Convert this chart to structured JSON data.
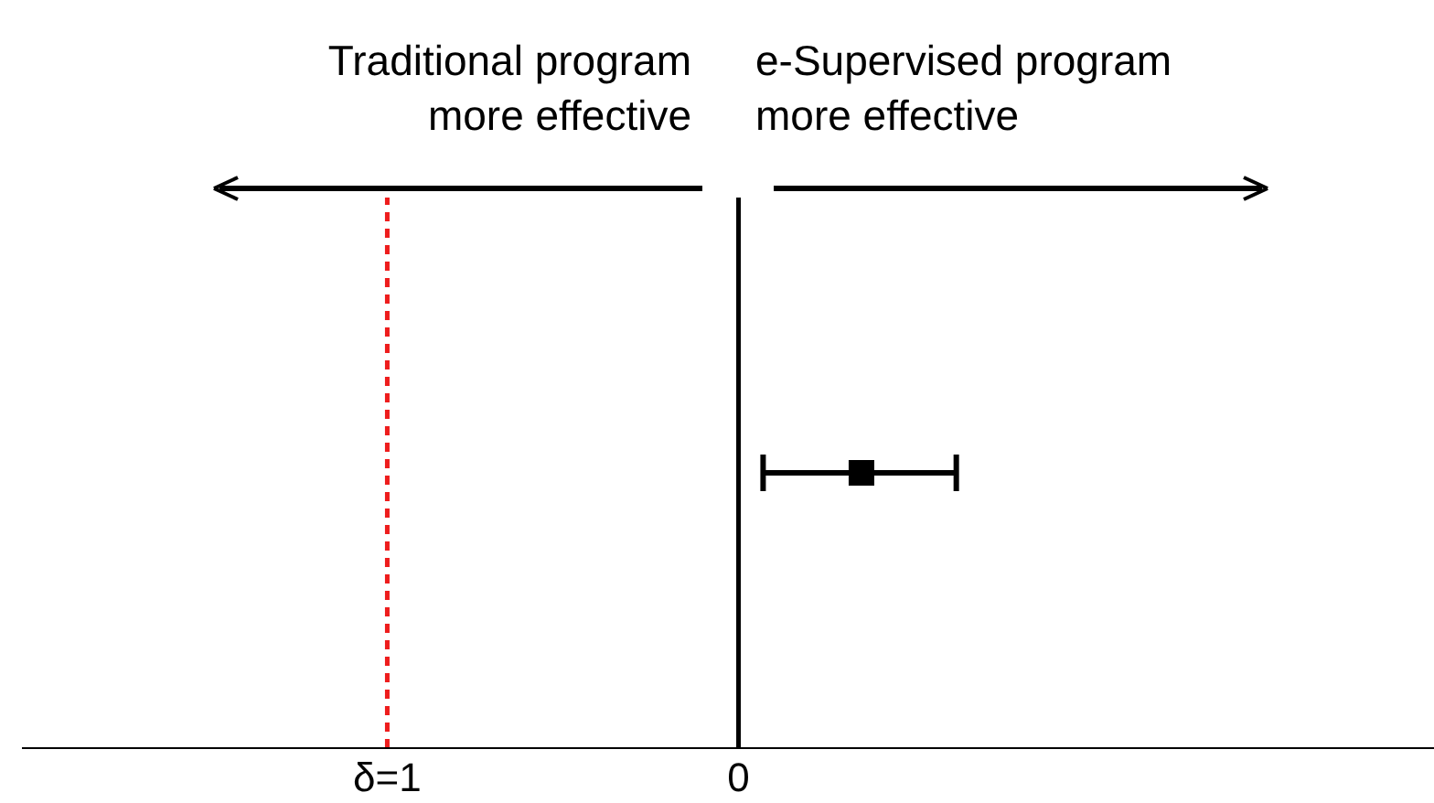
{
  "chart_data": {
    "type": "scatter",
    "orientation": "horizontal",
    "categories": [
      null
    ],
    "series": [
      {
        "color": "#000000",
        "values": [
          0.35
        ],
        "errors": [
          [
            0.07,
            0.62
          ]
        ]
      }
    ],
    "marker": "square",
    "xlim": [
      -2.04,
      1.98
    ],
    "xticks": [
      {
        "value": -1,
        "label": "δ=1"
      },
      0
    ],
    "tick_labels": "x",
    "grid": false,
    "legend": false,
    "ref_lines": [
      {
        "axis": "x",
        "value": -1,
        "label": null,
        "color": "#ee1c1c",
        "line_style": "dashed"
      },
      {
        "axis": "x",
        "value": 0,
        "label": null,
        "color": "#000000",
        "line_style": "solid"
      }
    ],
    "annotations": [
      "Traditional program\nmore effective",
      "e-Supervised program\nmore effective"
    ]
  }
}
